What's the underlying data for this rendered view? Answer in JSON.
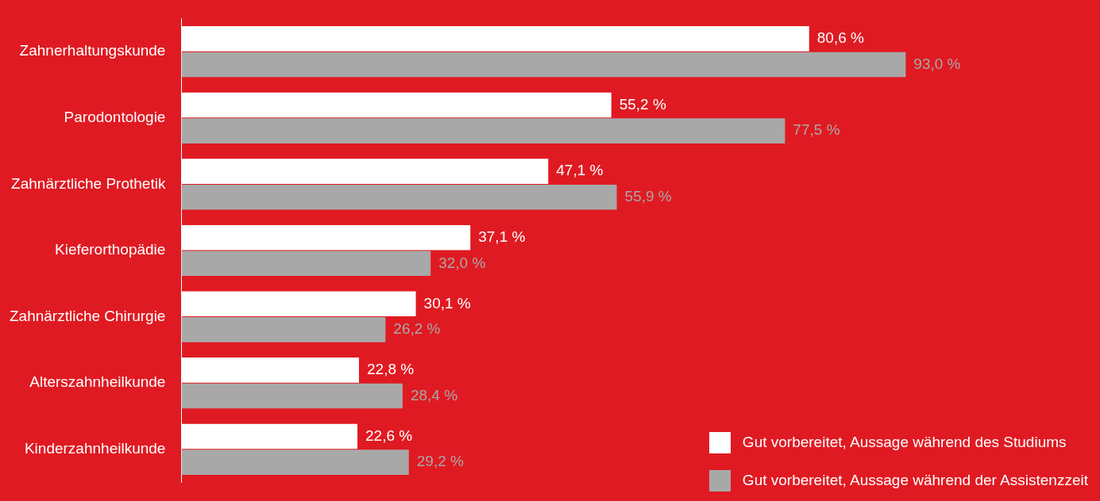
{
  "chart_data": {
    "type": "bar",
    "orientation": "horizontal",
    "categories": [
      "Zahnerhaltungskunde",
      "Parodontologie",
      "Zahnärztliche Prothetik",
      "Kieferorthopädie",
      "Zahnärztliche Chirurgie",
      "Alterszahnheilkunde",
      "Kinderzahnheilkunde"
    ],
    "series": [
      {
        "name": "Gut vorbereitet, Aussage während des Studiums",
        "color": "#ffffff",
        "values": [
          80.6,
          55.2,
          47.1,
          37.1,
          30.1,
          22.8,
          22.6
        ],
        "value_labels": [
          "80,6 %",
          "55,2 %",
          "47,1 %",
          "37,1 %",
          "30,1 %",
          "22,8 %",
          "22,6 %"
        ]
      },
      {
        "name": "Gut vorbereitet, Aussage während der Assistenzzeit",
        "color": "#a8a8a8",
        "values": [
          93.0,
          77.5,
          55.9,
          32.0,
          26.2,
          28.4,
          29.2
        ],
        "value_labels": [
          "93,0 %",
          "77,5 %",
          "55,9 %",
          "32,0 %",
          "26,2 %",
          "28,4 %",
          "29,2 %"
        ]
      }
    ],
    "tick_labels": "y",
    "grid": false,
    "legend": "bottom right"
  }
}
